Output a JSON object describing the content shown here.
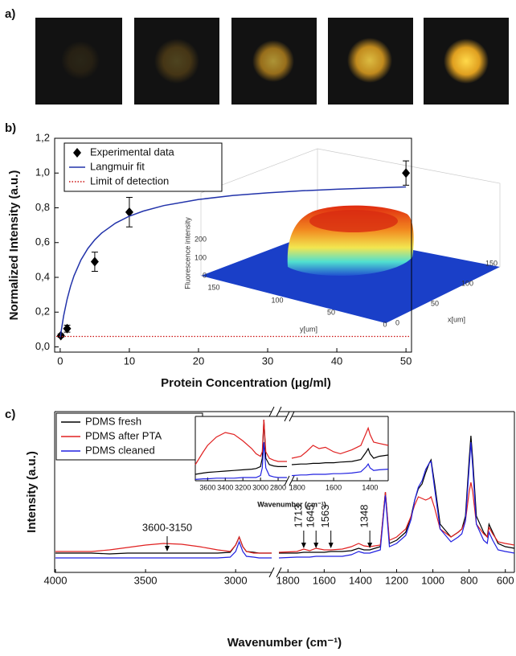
{
  "panel_labels": [
    "a)",
    "b)",
    "c)"
  ],
  "chart_data": [
    {
      "type": "scatter",
      "x_label": "Protein Concentration (μg/ml)",
      "y_label": "Normalized Intensity (a.u.)",
      "xlim": [
        -0.8,
        50.8
      ],
      "ylim": [
        -0.03,
        1.2
      ],
      "xticks": [
        0,
        10,
        20,
        30,
        40,
        50
      ],
      "yticks": [
        {
          "value": 0,
          "label": "0,0"
        },
        {
          "value": 0.2,
          "label": "0,2"
        },
        {
          "value": 0.4,
          "label": "0,4"
        },
        {
          "value": 0.6,
          "label": "0,6"
        },
        {
          "value": 0.8,
          "label": "0,8"
        },
        {
          "value": 1.0,
          "label": "1,0"
        },
        {
          "value": 1.2,
          "label": "1,2"
        }
      ],
      "series": [
        {
          "name": "Experimental data",
          "type": "scatter",
          "color": "#000000",
          "x": [
            0.1,
            1,
            5,
            10,
            50
          ],
          "values": [
            0.065,
            0.105,
            0.49,
            0.775,
            1.0
          ],
          "errors": [
            0.01,
            0.02,
            0.055,
            0.085,
            0.07
          ]
        },
        {
          "name": "Langmuir fit",
          "type": "line",
          "color": "#2233aa",
          "x": [
            0,
            0.5,
            1,
            1.5,
            2,
            3,
            4,
            5,
            6,
            8,
            10,
            12,
            15,
            20,
            25,
            30,
            35,
            40,
            45,
            50
          ],
          "values": [
            0.055,
            0.179,
            0.274,
            0.349,
            0.409,
            0.5,
            0.566,
            0.616,
            0.655,
            0.712,
            0.752,
            0.781,
            0.813,
            0.848,
            0.871,
            0.886,
            0.898,
            0.907,
            0.914,
            0.92
          ]
        },
        {
          "name": "Limit of detection",
          "type": "hline",
          "color": "#cc1111",
          "values": [
            0.06
          ]
        }
      ],
      "inset": {
        "z_label": "Fluorescence intensity",
        "z_ticks": [
          200,
          100,
          0
        ],
        "y_label": "y[um]",
        "y_ticks": [
          150,
          100,
          50,
          0
        ],
        "x_label": "x[um]",
        "x_ticks": [
          0,
          50,
          100,
          150
        ]
      }
    },
    {
      "type": "line",
      "x_label": "Wavenumber (cm⁻¹)",
      "y_label": "Intensity (a.u.)",
      "ylim": [
        0,
        1
      ],
      "x_segments": [
        {
          "xlim": [
            4000,
            2800
          ],
          "xticks": [
            4000,
            3500,
            3000
          ],
          "x": [
            4000,
            3800,
            3700,
            3600,
            3500,
            3400,
            3300,
            3200,
            3100,
            3030,
            3000,
            2980,
            2960,
            2940,
            2900,
            2870,
            2840,
            2800
          ]
        },
        {
          "xlim": [
            1850,
            550
          ],
          "xticks": [
            1800,
            1600,
            1400,
            1200,
            1000,
            800,
            600
          ],
          "x": [
            1850,
            1750,
            1713,
            1680,
            1645,
            1600,
            1563,
            1500,
            1450,
            1410,
            1380,
            1348,
            1320,
            1290,
            1262,
            1240,
            1200,
            1150,
            1120,
            1100,
            1080,
            1060,
            1040,
            1020,
            1010,
            990,
            960,
            900,
            860,
            840,
            820,
            800,
            790,
            780,
            760,
            720,
            700,
            690,
            670,
            640,
            600,
            550
          ]
        }
      ],
      "series": [
        {
          "name": "PDMS fresh",
          "color": "#000000",
          "values": [
            [
              0.12,
              0.12,
              0.115,
              0.12,
              0.12,
              0.12,
              0.12,
              0.12,
              0.12,
              0.125,
              0.17,
              0.22,
              0.16,
              0.13,
              0.125,
              0.12,
              0.12,
              0.12
            ],
            [
              0.12,
              0.12,
              0.125,
              0.125,
              0.125,
              0.125,
              0.13,
              0.13,
              0.135,
              0.15,
              0.14,
              0.14,
              0.15,
              0.16,
              0.5,
              0.18,
              0.2,
              0.25,
              0.35,
              0.45,
              0.52,
              0.55,
              0.62,
              0.68,
              0.7,
              0.55,
              0.3,
              0.22,
              0.25,
              0.27,
              0.35,
              0.7,
              0.85,
              0.7,
              0.35,
              0.25,
              0.22,
              0.3,
              0.25,
              0.18,
              0.16,
              0.15
            ]
          ]
        },
        {
          "name": "PDMS after PTA",
          "color": "#e02020",
          "values": [
            [
              0.13,
              0.13,
              0.14,
              0.155,
              0.17,
              0.18,
              0.175,
              0.16,
              0.14,
              0.13,
              0.17,
              0.22,
              0.16,
              0.13,
              0.12,
              0.12,
              0.12,
              0.12
            ],
            [
              0.125,
              0.13,
              0.145,
              0.135,
              0.15,
              0.14,
              0.14,
              0.145,
              0.16,
              0.18,
              0.165,
              0.16,
              0.165,
              0.17,
              0.5,
              0.2,
              0.22,
              0.27,
              0.35,
              0.42,
              0.47,
              0.46,
              0.45,
              0.46,
              0.47,
              0.4,
              0.27,
              0.22,
              0.25,
              0.27,
              0.32,
              0.5,
              0.56,
              0.5,
              0.3,
              0.24,
              0.22,
              0.28,
              0.24,
              0.19,
              0.18,
              0.17
            ]
          ]
        },
        {
          "name": "PDMS cleaned",
          "color": "#2020e0",
          "values": [
            [
              0.09,
              0.09,
              0.09,
              0.09,
              0.09,
              0.09,
              0.09,
              0.09,
              0.09,
              0.095,
              0.13,
              0.19,
              0.13,
              0.1,
              0.095,
              0.09,
              0.09,
              0.09
            ],
            [
              0.09,
              0.095,
              0.095,
              0.095,
              0.1,
              0.1,
              0.1,
              0.1,
              0.11,
              0.13,
              0.12,
              0.12,
              0.13,
              0.14,
              0.48,
              0.16,
              0.18,
              0.23,
              0.33,
              0.45,
              0.53,
              0.57,
              0.64,
              0.68,
              0.69,
              0.52,
              0.27,
              0.19,
              0.22,
              0.24,
              0.32,
              0.65,
              0.81,
              0.65,
              0.3,
              0.2,
              0.18,
              0.25,
              0.2,
              0.14,
              0.13,
              0.12
            ]
          ]
        }
      ],
      "annotations": [
        {
          "label": "3600-3150",
          "x": 3380
        },
        {
          "label": "1713",
          "x": 1713
        },
        {
          "label": "1645",
          "x": 1645
        },
        {
          "label": "1563",
          "x": 1563
        },
        {
          "label": "1348",
          "x": 1348
        }
      ]
    },
    {
      "type": "line",
      "x_label": "Wavenumber (cm⁻¹)",
      "ylim": [
        0,
        1
      ],
      "x_segments": [
        {
          "xlim": [
            3740,
            2700
          ],
          "xticks": [
            3600,
            3400,
            3200,
            3000,
            2800
          ],
          "x": [
            3740,
            3650,
            3600,
            3500,
            3400,
            3300,
            3200,
            3100,
            3050,
            3000,
            2980,
            2962,
            2940,
            2900,
            2850,
            2800,
            2700
          ]
        },
        {
          "xlim": [
            1830,
            1300
          ],
          "xticks": [
            1800,
            1600,
            1400
          ],
          "x": [
            1830,
            1780,
            1750,
            1713,
            1680,
            1645,
            1600,
            1563,
            1500,
            1450,
            1420,
            1410,
            1400,
            1380,
            1350,
            1300
          ]
        }
      ],
      "series": [
        {
          "name": "PDMS fresh",
          "color": "#000000",
          "values": [
            [
              0.1,
              0.12,
              0.13,
              0.14,
              0.15,
              0.16,
              0.17,
              0.18,
              0.19,
              0.22,
              0.35,
              0.95,
              0.35,
              0.25,
              0.23,
              0.22,
              0.22
            ],
            [
              0.25,
              0.26,
              0.26,
              0.27,
              0.27,
              0.28,
              0.28,
              0.29,
              0.3,
              0.33,
              0.45,
              0.5,
              0.42,
              0.35,
              0.38,
              0.4
            ]
          ]
        },
        {
          "name": "PDMS after PTA",
          "color": "#e02020",
          "values": [
            [
              0.25,
              0.45,
              0.55,
              0.68,
              0.75,
              0.72,
              0.62,
              0.5,
              0.42,
              0.38,
              0.45,
              0.95,
              0.45,
              0.35,
              0.32,
              0.3,
              0.3
            ],
            [
              0.35,
              0.38,
              0.45,
              0.55,
              0.5,
              0.52,
              0.45,
              0.42,
              0.48,
              0.55,
              0.75,
              0.82,
              0.72,
              0.6,
              0.58,
              0.55
            ]
          ]
        },
        {
          "name": "PDMS cleaned",
          "color": "#2020e0",
          "values": [
            [
              0.02,
              0.03,
              0.03,
              0.04,
              0.04,
              0.04,
              0.05,
              0.05,
              0.05,
              0.08,
              0.2,
              0.6,
              0.2,
              0.08,
              0.06,
              0.05,
              0.05
            ],
            [
              0.08,
              0.09,
              0.09,
              0.1,
              0.1,
              0.1,
              0.11,
              0.11,
              0.12,
              0.14,
              0.22,
              0.26,
              0.2,
              0.16,
              0.17,
              0.18
            ]
          ]
        }
      ]
    }
  ]
}
